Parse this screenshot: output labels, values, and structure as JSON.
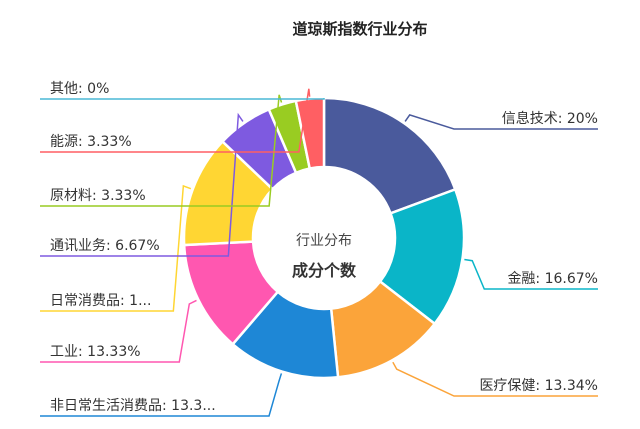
{
  "chart_data": {
    "type": "pie",
    "variant": "donut",
    "title": "道琼斯指数行业分布",
    "center_label": "行业分布",
    "center_value_label": "成分个数",
    "slices": [
      {
        "name": "信息技术",
        "value": 20,
        "label": "信息技术: 20%",
        "color": "#4a5a9c"
      },
      {
        "name": "金融",
        "value": 16.67,
        "label": "金融: 16.67%",
        "color": "#0ab5c8"
      },
      {
        "name": "医疗保健",
        "value": 13.34,
        "label": "医疗保健: 13.34%",
        "color": "#fba43a"
      },
      {
        "name": "非日常生活消费品",
        "value": 13.33,
        "label": "非日常生活消费品: 13.3...",
        "color": "#1e87d6"
      },
      {
        "name": "工业",
        "value": 13.33,
        "label": "工业: 13.33%",
        "color": "#ff57b0"
      },
      {
        "name": "日常消费品",
        "value": 13.33,
        "label": "日常消费品: 1...",
        "color": "#ffd633"
      },
      {
        "name": "通讯业务",
        "value": 6.67,
        "label": "通讯业务: 6.67%",
        "color": "#7e5ae0"
      },
      {
        "name": "原材料",
        "value": 3.33,
        "label": "原材料: 3.33%",
        "color": "#99cc22"
      },
      {
        "name": "能源",
        "value": 3.33,
        "label": "能源: 3.33%",
        "color": "#ff5f63"
      },
      {
        "name": "其他",
        "value": 0,
        "label": "其他: 0%",
        "color": "#4ab8d6"
      }
    ]
  }
}
